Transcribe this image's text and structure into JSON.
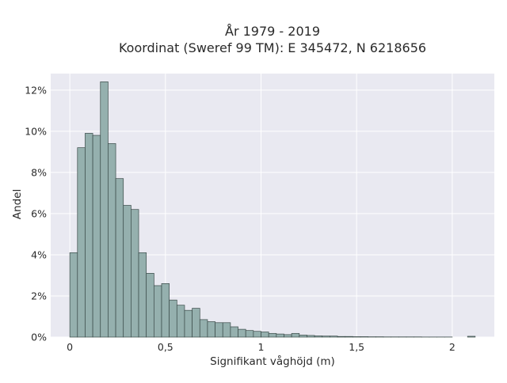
{
  "chart_data": {
    "type": "bar",
    "title": "År 1979 - 2019",
    "subtitle": "Koordinat (Sweref 99 TM): E 345472, N 6218656",
    "xlabel": "Signifikant våghöjd (m)",
    "ylabel": "Andel",
    "xlim": [
      -0.1,
      2.22
    ],
    "ylim": [
      0,
      12.8
    ],
    "x_ticks": [
      {
        "value": 0,
        "label": "0"
      },
      {
        "value": 0.5,
        "label": "0,5"
      },
      {
        "value": 1,
        "label": "1"
      },
      {
        "value": 1.5,
        "label": "1,5"
      },
      {
        "value": 2,
        "label": "2"
      }
    ],
    "y_ticks": [
      {
        "value": 0,
        "label": "0%"
      },
      {
        "value": 2,
        "label": "2%"
      },
      {
        "value": 4,
        "label": "4%"
      },
      {
        "value": 6,
        "label": "6%"
      },
      {
        "value": 8,
        "label": "8%"
      },
      {
        "value": 10,
        "label": "10%"
      },
      {
        "value": 12,
        "label": "12%"
      }
    ],
    "bin_width": 0.04,
    "bin_starts": [
      0.0,
      0.04,
      0.08,
      0.12,
      0.16,
      0.2,
      0.24,
      0.28,
      0.32,
      0.36,
      0.4,
      0.44,
      0.48,
      0.52,
      0.56,
      0.6,
      0.64,
      0.68,
      0.72,
      0.76,
      0.8,
      0.84,
      0.88,
      0.92,
      0.96,
      1.0,
      1.04,
      1.08,
      1.12,
      1.16,
      1.2,
      1.24,
      1.28,
      1.32,
      1.36,
      1.4,
      1.44,
      1.48,
      1.52,
      1.56,
      1.6,
      1.64,
      1.68,
      1.72,
      1.76,
      1.8,
      1.84,
      1.88,
      1.92,
      1.96,
      2.0,
      2.04,
      2.08
    ],
    "values": [
      4.1,
      9.2,
      9.9,
      9.8,
      12.4,
      9.4,
      7.7,
      6.4,
      6.2,
      4.1,
      3.1,
      2.5,
      2.6,
      1.8,
      1.55,
      1.3,
      1.4,
      0.85,
      0.75,
      0.7,
      0.7,
      0.5,
      0.38,
      0.32,
      0.28,
      0.25,
      0.18,
      0.15,
      0.12,
      0.18,
      0.1,
      0.08,
      0.06,
      0.05,
      0.05,
      0.03,
      0.03,
      0.02,
      0.02,
      0.015,
      0.015,
      0.01,
      0.01,
      0.01,
      0.01,
      0.01,
      0.005,
      0.005,
      0.005,
      0.005,
      0.0,
      0.0,
      0.04
    ],
    "grid": true,
    "colors": {
      "background": "#e9e9f1",
      "grid": "#ffffff",
      "bar_fill": "#95b0ae",
      "bar_stroke": "#3a4a48"
    }
  }
}
